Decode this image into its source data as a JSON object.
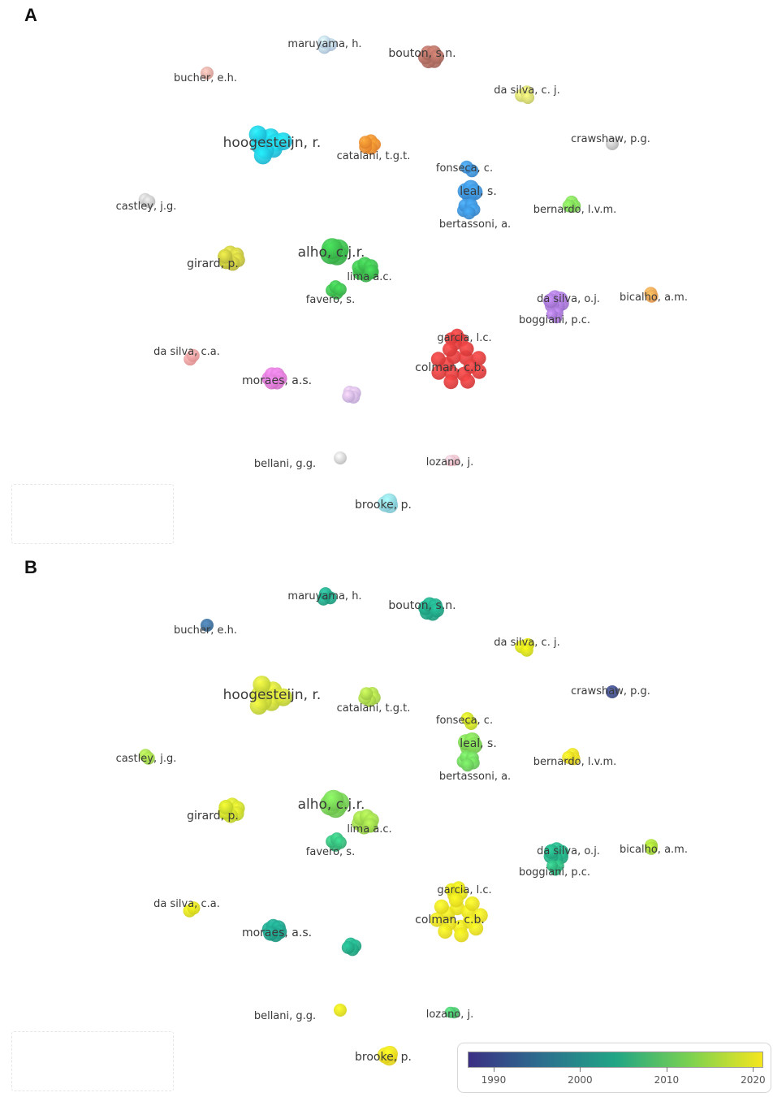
{
  "panels": [
    {
      "letter": "A",
      "mode": "cluster",
      "clusters": [
        {
          "label": "maruyama, h.",
          "color": "#b7cde6"
        },
        {
          "label": "bouton, s.n.",
          "color": "#b06e62"
        },
        {
          "label": "bucher, e.h.",
          "color": "#e2a59c"
        },
        {
          "label": "da silva, c. j.",
          "color": "#d3d86c"
        },
        {
          "label": "hoogesteijn, r.",
          "color": "#1ec4e2"
        },
        {
          "label": "catalani, t.g.t.",
          "color": "#f28a2e"
        },
        {
          "label": "crawshaw, p.g.",
          "color": "#bdbdbd"
        },
        {
          "label": "fonseca, c.",
          "color": "#3b8ed8"
        },
        {
          "label": "leal, s.",
          "color": "#3b8ed8"
        },
        {
          "label": "bertassoni, a.",
          "color": "#3b8ed8"
        },
        {
          "label": "castley, j.g.",
          "color": "#c3c3c3"
        },
        {
          "label": "bernardo, l.v.m.",
          "color": "#7ed957"
        },
        {
          "label": "alho, c.j.r.",
          "color": "#3cb94c"
        },
        {
          "label": "lima a.c.",
          "color": "#3cb94c"
        },
        {
          "label": "favero, s.",
          "color": "#3cb94c"
        },
        {
          "label": "girard, p.",
          "color": "#c4c33e"
        },
        {
          "label": "da silva, o.j.",
          "color": "#a678d8"
        },
        {
          "label": "bicalho, a.m.",
          "color": "#f2a050"
        },
        {
          "label": "boggiani, p.c.",
          "color": "#a678d8"
        },
        {
          "label": "garcia, l.c.",
          "color": "#e33c3c"
        },
        {
          "label": "colman, c.b.",
          "color": "#e33c3c"
        },
        {
          "label": "da silva, c.a.",
          "color": "#f29a9a"
        },
        {
          "label": "moraes, a.s.",
          "color": "#e078d4"
        },
        {
          "label": "",
          "color": "#cdb3e6"
        },
        {
          "label": "bellani, g.g.",
          "color": "#cccccc"
        },
        {
          "label": "lozano, j.",
          "color": "#f2bcc6"
        },
        {
          "label": "brooke, p.",
          "color": "#8dd7e3"
        }
      ]
    },
    {
      "letter": "B",
      "mode": "overlay",
      "clusters": [
        {
          "label": "maruyama, h.",
          "color": "#20a486"
        },
        {
          "label": "bouton, s.n.",
          "color": "#21a585"
        },
        {
          "label": "bucher, e.h.",
          "color": "#3b6d9a"
        },
        {
          "label": "da silva, c. j.",
          "color": "#d8e219"
        },
        {
          "label": "hoogesteijn, r.",
          "color": "#c9dc38"
        },
        {
          "label": "catalani, t.g.t.",
          "color": "#a8d84a"
        },
        {
          "label": "crawshaw, p.g.",
          "color": "#3f4c89"
        },
        {
          "label": "fonseca, c.",
          "color": "#c7e021"
        },
        {
          "label": "leal, s.",
          "color": "#7ad151"
        },
        {
          "label": "bertassoni, a.",
          "color": "#6ccd5a"
        },
        {
          "label": "castley, j.g.",
          "color": "#9fd84a"
        },
        {
          "label": "bernardo, l.v.m.",
          "color": "#eddb24"
        },
        {
          "label": "alho, c.j.r.",
          "color": "#75d054"
        },
        {
          "label": "lima a.c.",
          "color": "#9ad84a"
        },
        {
          "label": "favero, s.",
          "color": "#35b779"
        },
        {
          "label": "girard, p.",
          "color": "#c9de2c"
        },
        {
          "label": "da silva, o.j.",
          "color": "#25ab82"
        },
        {
          "label": "bicalho, a.m.",
          "color": "#a2da37"
        },
        {
          "label": "boggiani, p.c.",
          "color": "#2eb37c"
        },
        {
          "label": "garcia, l.c.",
          "color": "#e7e419"
        },
        {
          "label": "colman, c.b.",
          "color": "#f0e51e"
        },
        {
          "label": "da silva, c.a.",
          "color": "#e1e31c"
        },
        {
          "label": "moraes, a.s.",
          "color": "#1f9f88"
        },
        {
          "label": "",
          "color": "#22a884"
        },
        {
          "label": "bellani, g.g.",
          "color": "#e7e419"
        },
        {
          "label": "lozano, j.",
          "color": "#4ac16d"
        },
        {
          "label": "brooke, p.",
          "color": "#f4e21f"
        }
      ],
      "colorbar": {
        "ticks": [
          "1990",
          "2000",
          "2010",
          "2020"
        ],
        "tick_values": [
          1990,
          2000,
          2010,
          2020
        ],
        "range": [
          1987,
          2021
        ],
        "colors": [
          "#3b2f84",
          "#2c6f8e",
          "#21a585",
          "#7ad151",
          "#f5e61e"
        ]
      }
    }
  ]
}
